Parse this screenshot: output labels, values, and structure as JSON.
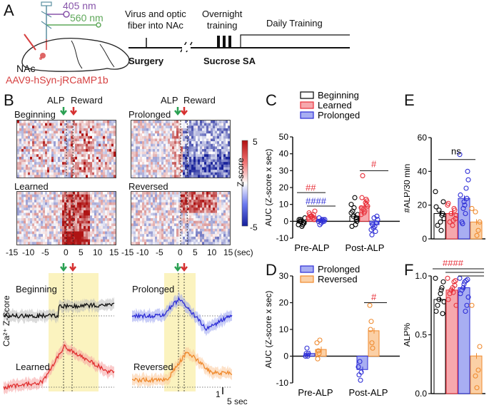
{
  "panels": {
    "A": "A",
    "B": "B",
    "C": "C",
    "D": "D",
    "E": "E",
    "F": "F"
  },
  "panel_a": {
    "wavelength_1": "405 nm",
    "wavelength_2": "560 nm",
    "region": "NAc",
    "virus": "AAV9-hSyn-jRCaMP1b",
    "timeline_labels": {
      "virus": "Virus and optic\nfiber into NAc",
      "overnight": "Overnight\ntraining",
      "daily": "Daily Training",
      "surgery": "Surgery",
      "sucrose": "Sucrose SA"
    }
  },
  "panel_b": {
    "event_alp": "ALP",
    "event_reward": "Reward",
    "heatmaps": [
      "Beginning",
      "Prolonged",
      "Learned",
      "Reversed"
    ],
    "colorbar_title": "Z-score",
    "colorbar_max": "5",
    "colorbar_min": "-5",
    "x_ticks": [
      "-15",
      "-10",
      "-5",
      "0",
      "5",
      "10",
      "15"
    ],
    "x_unit": "(sec)",
    "trace_labels": [
      "Beginning",
      "Prolonged",
      "Learned",
      "Reversed"
    ],
    "trace_ylabel": "Ca²⁺ Z-Score",
    "scale_y": "1",
    "scale_x": "5 sec"
  },
  "chart_data": [
    {
      "type": "bar",
      "panel": "C",
      "ylabel": "AUC (Z-score x sec)",
      "categories": [
        "Pre-ALP",
        "Post-ALP"
      ],
      "ylim": [
        -10,
        50
      ],
      "yticks": [
        "-10",
        "0",
        "10",
        "20",
        "30",
        "40",
        "50"
      ],
      "series": [
        {
          "name": "Beginning",
          "color": "#000000",
          "fill": "#ffffff",
          "values": [
            -1,
            3
          ],
          "points": [
            [
              -2,
              -1,
              0,
              1,
              -1,
              -3,
              0,
              2,
              -2,
              1
            ],
            [
              5,
              2,
              8,
              -3,
              0,
              14,
              6,
              4,
              -2,
              3,
              10,
              1
            ]
          ]
        },
        {
          "name": "Learned",
          "color": "#e8303a",
          "fill": "#f6a8ad",
          "values": [
            3,
            9
          ],
          "points": [
            [
              2,
              4,
              3,
              5,
              1,
              3,
              4,
              6,
              2,
              3
            ],
            [
              8,
              10,
              5,
              14,
              12,
              6,
              27,
              9,
              11,
              7,
              4,
              13
            ]
          ]
        },
        {
          "name": "Prolonged",
          "color": "#2d2dd6",
          "fill": "#a8aef2",
          "values": [
            0.5,
            -2
          ],
          "points": [
            [
              0,
              1,
              -1,
              2,
              0,
              1,
              -2,
              1,
              0
            ],
            [
              -5,
              -1,
              2,
              -8,
              3,
              -3,
              -2,
              1,
              -6,
              -4
            ]
          ]
        }
      ],
      "annotations": [
        "##",
        "####",
        "#"
      ]
    },
    {
      "type": "bar",
      "panel": "D",
      "ylabel": "AUC (Z-score x sec)",
      "categories": [
        "Pre-ALP",
        "Post-ALP"
      ],
      "ylim": [
        -10,
        30
      ],
      "yticks": [
        "-10",
        "0",
        "10",
        "20",
        "30"
      ],
      "series": [
        {
          "name": "Prolonged",
          "color": "#2d2dd6",
          "fill": "#a8aef2",
          "values": [
            1,
            -5
          ],
          "points": [
            [
              0,
              1,
              3,
              0,
              1
            ],
            [
              -4,
              -7,
              -2,
              -9,
              -6
            ]
          ]
        },
        {
          "name": "Reversed",
          "color": "#ef8a2e",
          "fill": "#fbd0a6",
          "values": [
            2.5,
            9.5
          ],
          "points": [
            [
              5,
              -1,
              2,
              1,
              6
            ],
            [
              19,
              10,
              13,
              5,
              3
            ]
          ]
        }
      ],
      "annotations": [
        "#"
      ]
    },
    {
      "type": "bar",
      "panel": "E",
      "ylabel": "#ALP/30 min",
      "ylim": [
        0,
        60
      ],
      "yticks": [
        "0",
        "20",
        "40",
        "60"
      ],
      "series": [
        {
          "name": "Beginning",
          "color": "#000000",
          "fill": "#ffffff",
          "value": 15,
          "points": [
            28,
            22,
            14,
            10,
            17,
            8,
            19,
            12,
            15,
            5
          ]
        },
        {
          "name": "Learned",
          "color": "#e8303a",
          "fill": "#f6a8ad",
          "value": 15,
          "points": [
            20,
            12,
            18,
            8,
            15,
            10,
            21,
            14,
            17,
            11
          ]
        },
        {
          "name": "Prolonged",
          "color": "#2d2dd6",
          "fill": "#a8aef2",
          "value": 24,
          "points": [
            50,
            40,
            30,
            20,
            18,
            10,
            26,
            35,
            24,
            15,
            22,
            9
          ]
        },
        {
          "name": "Reversed",
          "color": "#ef8a2e",
          "fill": "#fbd0a6",
          "value": 10,
          "points": [
            18,
            10,
            5,
            2,
            16
          ]
        }
      ],
      "annotations": [
        "ns"
      ]
    },
    {
      "type": "bar",
      "panel": "F",
      "ylabel": "ALP%",
      "ylim": [
        0,
        1.0
      ],
      "yticks": [
        "0.0",
        "0.5",
        "1.0"
      ],
      "series": [
        {
          "name": "Beginning",
          "color": "#000000",
          "fill": "#ffffff",
          "value": 0.8,
          "points": [
            0.98,
            0.95,
            0.9,
            0.85,
            0.8,
            0.75,
            0.7,
            0.78,
            0.68,
            0.88
          ]
        },
        {
          "name": "Learned",
          "color": "#e8303a",
          "fill": "#f6a8ad",
          "value": 0.88,
          "points": [
            0.98,
            0.96,
            0.95,
            0.9,
            0.88,
            0.85,
            0.8,
            0.75,
            0.92,
            0.86
          ]
        },
        {
          "name": "Prolonged",
          "color": "#2d2dd6",
          "fill": "#a8aef2",
          "value": 0.9,
          "points": [
            0.98,
            0.97,
            0.96,
            0.95,
            0.9,
            0.88,
            0.85,
            0.82,
            0.75,
            0.7,
            0.93
          ]
        },
        {
          "name": "Reversed",
          "color": "#ef8a2e",
          "fill": "#fbd0a6",
          "value": 0.32,
          "points": [
            0.75,
            0.4,
            0.2,
            0.05,
            0.15
          ]
        }
      ],
      "annotations": [
        "####"
      ]
    }
  ]
}
